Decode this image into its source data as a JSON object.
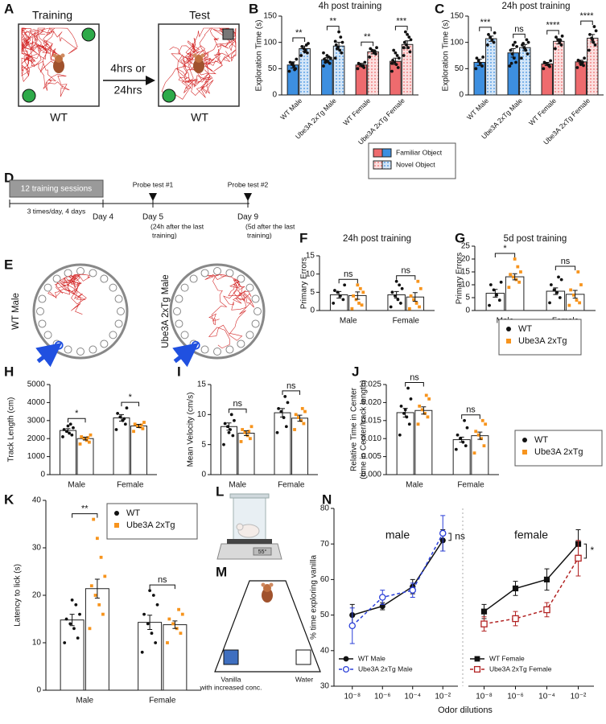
{
  "diagrams": {
    "A": {
      "label": "A",
      "training": "Training",
      "test": "Test",
      "delay": [
        "4hrs or",
        "24hrs"
      ],
      "genotypes": [
        "WT",
        "WT"
      ]
    },
    "D": {
      "label": "D",
      "box": "12 training sessions",
      "schedule": "3 times/day, 4 days",
      "days": [
        {
          "day": "Day 4"
        },
        {
          "day": "Day 5",
          "note": [
            "(24h after the last",
            "training)"
          ],
          "probe": "Probe test #1"
        },
        {
          "day": "Day 9",
          "note": [
            "(5d after the last",
            "training)"
          ],
          "probe": "Probe test #2"
        }
      ]
    },
    "E": {
      "label": "E",
      "mazes": [
        "WT Male",
        "Ube3A 2xTg Male"
      ]
    },
    "L": {
      "label": "L",
      "display": "55°"
    },
    "M": {
      "label": "M",
      "left": [
        "Vanilla",
        "with increased conc."
      ],
      "right": "Water"
    }
  },
  "chart_data": [
    {
      "type": "bar",
      "panel_label": "B",
      "title": "4h post training",
      "ylabel": "Exploration Time (s)",
      "categories": [
        "WT Male",
        "Ube3A 2xTg Male",
        "WT Female",
        "Ube3A 2xTg Female"
      ],
      "ylim": [
        0,
        150
      ],
      "yticks": [
        0,
        50,
        100,
        150
      ],
      "point_color": "#111111",
      "legend": true,
      "significance": [
        "**",
        "**",
        "**",
        "***"
      ],
      "series": [
        {
          "name": "Familiar Object",
          "colors": [
            "#3d8fe0",
            "#3d8fe0",
            "#ee6b6e",
            "#ee6b6e"
          ],
          "values": [
            57,
            67,
            57,
            64
          ],
          "errors": [
            6,
            4,
            3,
            6
          ],
          "points": [
            [
              45,
              50,
              55,
              58,
              62,
              68,
              48,
              60
            ],
            [
              55,
              60,
              63,
              65,
              68,
              70,
              72,
              75,
              62,
              80
            ],
            [
              50,
              52,
              55,
              58,
              60,
              62,
              56
            ],
            [
              45,
              52,
              58,
              62,
              66,
              70,
              75,
              80,
              85,
              60
            ]
          ]
        },
        {
          "name": "Novel Object",
          "pattern": "dots",
          "colors": [
            "#3d8fe0",
            "#3d8fe0",
            "#ee6b6e",
            "#ee6b6e"
          ],
          "values": [
            88,
            93,
            82,
            96
          ],
          "errors": [
            5,
            7,
            4,
            7
          ],
          "points": [
            [
              75,
              80,
              85,
              88,
              92,
              98,
              95,
              82
            ],
            [
              70,
              80,
              85,
              90,
              95,
              100,
              110,
              120,
              88,
              102
            ],
            [
              72,
              78,
              80,
              85,
              88,
              90,
              83
            ],
            [
              75,
              82,
              90,
              95,
              100,
              105,
              110,
              115,
              120,
              90
            ]
          ]
        }
      ]
    },
    {
      "type": "bar",
      "panel_label": "C",
      "title": "24h post training",
      "ylabel": "Exploration Time (s)",
      "categories": [
        "WT Male",
        "Ube3A 2xTg Male",
        "WT Female",
        "Ube3A 2xTg Female"
      ],
      "ylim": [
        0,
        150
      ],
      "yticks": [
        0,
        50,
        100,
        150
      ],
      "point_color": "#111111",
      "significance": [
        "***",
        "ns",
        "****",
        "****"
      ],
      "series": [
        {
          "name": "Familiar Object",
          "colors": [
            "#3d8fe0",
            "#3d8fe0",
            "#ee6b6e",
            "#ee6b6e"
          ],
          "values": [
            62,
            80,
            59,
            63
          ],
          "errors": [
            6,
            8,
            3,
            3
          ],
          "points": [
            [
              50,
              55,
              60,
              65,
              70,
              72
            ],
            [
              55,
              62,
              70,
              78,
              85,
              92,
              100,
              95,
              60
            ],
            [
              50,
              54,
              58,
              60,
              62,
              65,
              56
            ],
            [
              52,
              56,
              60,
              64,
              66,
              70,
              62,
              58
            ]
          ]
        },
        {
          "name": "Novel Object",
          "pattern": "dots",
          "colors": [
            "#3d8fe0",
            "#3d8fe0",
            "#ee6b6e",
            "#ee6b6e"
          ],
          "values": [
            107,
            90,
            102,
            108
          ],
          "errors": [
            5,
            6,
            5,
            7
          ],
          "points": [
            [
              95,
              100,
              105,
              110,
              115,
              118
            ],
            [
              70,
              78,
              85,
              90,
              95,
              100,
              105,
              88,
              98
            ],
            [
              88,
              95,
              100,
              105,
              110,
              112,
              104
            ],
            [
              85,
              95,
              100,
              108,
              115,
              122,
              130,
              105
            ]
          ]
        }
      ]
    },
    {
      "type": "bar",
      "panel_label": "F",
      "title": "24h post training",
      "ylabel": "Primary Errors",
      "categories": [
        "Male",
        "Female"
      ],
      "ylim": [
        0,
        15
      ],
      "yticks": [
        0,
        5,
        10,
        15
      ],
      "bar_color": "#ffffff",
      "significance": [
        "ns",
        "ns"
      ],
      "series": [
        {
          "name": "WT",
          "color": "#111111",
          "marker": "circle",
          "values": [
            4.3,
            4.3
          ],
          "errors": [
            0.9,
            0.9
          ],
          "points": [
            [
              2,
              3,
              4,
              5,
              5.5,
              7
            ],
            [
              1,
              2,
              3,
              4,
              5,
              6,
              7,
              8
            ]
          ]
        },
        {
          "name": "Ube3A 2xTg",
          "color": "#f7941d",
          "marker": "square",
          "values": [
            4.1,
            3.7
          ],
          "errors": [
            1.0,
            1.2
          ],
          "points": [
            [
              0.5,
              1.5,
              2,
              3,
              4,
              5,
              6,
              7
            ],
            [
              0.5,
              1,
              2,
              3,
              4,
              6,
              8
            ]
          ]
        }
      ]
    },
    {
      "type": "bar",
      "panel_label": "G",
      "title": "5d post training",
      "ylabel": "Primary Errors",
      "categories": [
        "Male",
        "Female"
      ],
      "ylim": [
        0,
        25
      ],
      "yticks": [
        0,
        5,
        10,
        15,
        20,
        25
      ],
      "bar_color": "#ffffff",
      "significance": [
        "*",
        "ns"
      ],
      "legend": true,
      "series": [
        {
          "name": "WT",
          "color": "#111111",
          "marker": "circle",
          "values": [
            6.7,
            7.5
          ],
          "errors": [
            1.5,
            1.3
          ],
          "points": [
            [
              2,
              4,
              6,
              8,
              10,
              11
            ],
            [
              3,
              5,
              7,
              8,
              10,
              12,
              13
            ]
          ]
        },
        {
          "name": "Ube3A 2xTg",
          "color": "#f7941d",
          "marker": "square",
          "values": [
            13.1,
            6.3
          ],
          "errors": [
            1.2,
            1.5
          ],
          "points": [
            [
              9,
              11,
              12,
              13,
              14,
              15,
              17,
              20
            ],
            [
              2,
              3,
              4,
              6,
              8,
              10,
              15
            ]
          ]
        }
      ]
    },
    {
      "type": "bar",
      "panel_label": "H",
      "ylabel": "Track Length (cm)",
      "categories": [
        "Male",
        "Female"
      ],
      "ylim": [
        0,
        5000
      ],
      "yticks": [
        0,
        1000,
        2000,
        3000,
        4000,
        5000
      ],
      "bar_color": "#ffffff",
      "significance": [
        "*",
        "*"
      ],
      "series": [
        {
          "name": "WT",
          "color": "#111111",
          "marker": "circle",
          "values": [
            2450,
            3150
          ],
          "errors": [
            100,
            180
          ],
          "points": [
            [
              2100,
              2200,
              2300,
              2400,
              2500,
              2600,
              2800,
              2700
            ],
            [
              2500,
              2800,
              3000,
              3200,
              3400,
              3700,
              3100
            ]
          ]
        },
        {
          "name": "Ube3A 2xTg",
          "color": "#f7941d",
          "marker": "square",
          "values": [
            2000,
            2700
          ],
          "errors": [
            80,
            90
          ],
          "points": [
            [
              1700,
              1800,
              1900,
              2000,
              2100,
              2200,
              2050
            ],
            [
              2400,
              2550,
              2650,
              2700,
              2800,
              2900,
              2750
            ]
          ]
        }
      ]
    },
    {
      "type": "bar",
      "panel_label": "I",
      "ylabel": "Mean Velocity (cm/s)",
      "categories": [
        "Male",
        "Female"
      ],
      "ylim": [
        0,
        15
      ],
      "yticks": [
        0,
        5,
        10,
        15
      ],
      "bar_color": "#ffffff",
      "significance": [
        "ns",
        "ns"
      ],
      "series": [
        {
          "name": "WT",
          "color": "#111111",
          "marker": "circle",
          "values": [
            8.0,
            10.3
          ],
          "errors": [
            0.6,
            0.7
          ],
          "points": [
            [
              5,
              6.5,
              7.5,
              8,
              8.5,
              9,
              10,
              7
            ],
            [
              7,
              8,
              9.5,
              10.5,
              11,
              12,
              13
            ]
          ]
        },
        {
          "name": "Ube3A 2xTg",
          "color": "#f7941d",
          "marker": "square",
          "values": [
            6.9,
            9.4
          ],
          "errors": [
            0.4,
            0.5
          ],
          "points": [
            [
              5.5,
              6,
              6.5,
              7,
              7.5,
              8,
              7.2
            ],
            [
              7.5,
              8.5,
              9,
              9.5,
              10,
              10.5,
              11
            ]
          ]
        }
      ]
    },
    {
      "type": "bar",
      "panel_label": "J",
      "ylabel": [
        "Relative Time in Center",
        "(time in Center/track length)"
      ],
      "categories": [
        "Male",
        "Female"
      ],
      "ylim": [
        0,
        0.025
      ],
      "yticks": [
        {
          "value": 0,
          "label": "0.000"
        },
        {
          "value": 0.005,
          "label": "0.005"
        },
        {
          "value": 0.01,
          "label": "0.010"
        },
        {
          "value": 0.015,
          "label": "0.015"
        },
        {
          "value": 0.02,
          "label": "0.020"
        },
        {
          "value": 0.025,
          "label": "0.025"
        }
      ],
      "bar_color": "#ffffff",
      "significance": [
        "ns",
        "ns"
      ],
      "legend": true,
      "series": [
        {
          "name": "WT",
          "color": "#111111",
          "marker": "circle",
          "values": [
            0.0172,
            0.0097
          ],
          "errors": [
            0.0012,
            0.0007
          ],
          "points": [
            [
              0.011,
              0.014,
              0.016,
              0.017,
              0.019,
              0.021,
              0.024,
              0.018
            ],
            [
              0.007,
              0.008,
              0.009,
              0.01,
              0.011,
              0.013,
              0.015
            ]
          ]
        },
        {
          "name": "Ube3A 2xTg",
          "color": "#f7941d",
          "marker": "square",
          "values": [
            0.0178,
            0.0108
          ],
          "errors": [
            0.001,
            0.001
          ],
          "points": [
            [
              0.014,
              0.016,
              0.017,
              0.018,
              0.019,
              0.021,
              0.022
            ],
            [
              0.006,
              0.008,
              0.01,
              0.011,
              0.012,
              0.014,
              0.015
            ]
          ]
        }
      ]
    },
    {
      "type": "bar",
      "panel_label": "K",
      "ylabel": "Latency to lick (s)",
      "categories": [
        "Male",
        "Female"
      ],
      "ylim": [
        0,
        40
      ],
      "yticks": [
        0,
        10,
        20,
        30,
        40
      ],
      "bar_color": "#ffffff",
      "significance": [
        "**",
        "ns"
      ],
      "legend": true,
      "series": [
        {
          "name": "WT",
          "color": "#111111",
          "marker": "circle",
          "values": [
            14.8,
            14.3
          ],
          "errors": [
            1.2,
            1.5
          ],
          "points": [
            [
              10,
              11,
              13,
              14,
              15,
              16,
              18,
              19
            ],
            [
              8,
              10,
              12,
              14,
              16,
              18,
              20,
              21
            ]
          ]
        },
        {
          "name": "Ube3A 2xTg",
          "color": "#f7941d",
          "marker": "square",
          "values": [
            21.4,
            13.8
          ],
          "errors": [
            2.0,
            0.8
          ],
          "points": [
            [
              13,
              16,
              18,
              20,
              22,
              24,
              28,
              32,
              36
            ],
            [
              10,
              12,
              13,
              14,
              15,
              16,
              17
            ]
          ]
        }
      ]
    },
    {
      "type": "line",
      "panel_label": "N",
      "ylabel": "% time exploring vanilla",
      "xlabel": "Odor dilutions",
      "log_x": true,
      "x": [
        1e-08,
        1e-06,
        0.0001,
        0.01
      ],
      "xlim": [
        1e-09,
        0.1
      ],
      "xticks": [
        {
          "value": 1e-08,
          "label": "10⁻⁸"
        },
        {
          "value": 1e-06,
          "label": "10⁻⁶"
        },
        {
          "value": 0.0001,
          "label": "10⁻⁴"
        },
        {
          "value": 0.01,
          "label": "10⁻²"
        }
      ],
      "ylim": [
        30,
        80
      ],
      "yticks": [
        30,
        40,
        50,
        60,
        70,
        80
      ],
      "facets": [
        {
          "title": "male",
          "significance": "ns",
          "series": [
            {
              "name": "WT Male",
              "color": "#111111",
              "marker": "circle",
              "filled": true,
              "dashed": false,
              "values": [
                50,
                52.5,
                58,
                71
              ],
              "errors": [
                3,
                1,
                2,
                3
              ]
            },
            {
              "name": "Ube3A 2xTg Male",
              "color": "#2a3fd8",
              "marker": "circle",
              "filled": false,
              "dashed": true,
              "values": [
                47,
                55,
                57,
                73
              ],
              "errors": [
                5,
                2,
                2,
                5
              ]
            }
          ]
        },
        {
          "title": "female",
          "significance": "*",
          "series": [
            {
              "name": "WT Female",
              "color": "#111111",
              "marker": "square",
              "filled": true,
              "dashed": false,
              "values": [
                51,
                57.5,
                60,
                70
              ],
              "errors": [
                2,
                2,
                3,
                4
              ]
            },
            {
              "name": "Ube3A 2xTg Female",
              "color": "#b22222",
              "marker": "square",
              "filled": false,
              "dashed": true,
              "values": [
                47.5,
                49,
                51.5,
                66
              ],
              "errors": [
                2,
                2,
                2,
                5
              ]
            }
          ]
        }
      ]
    }
  ]
}
